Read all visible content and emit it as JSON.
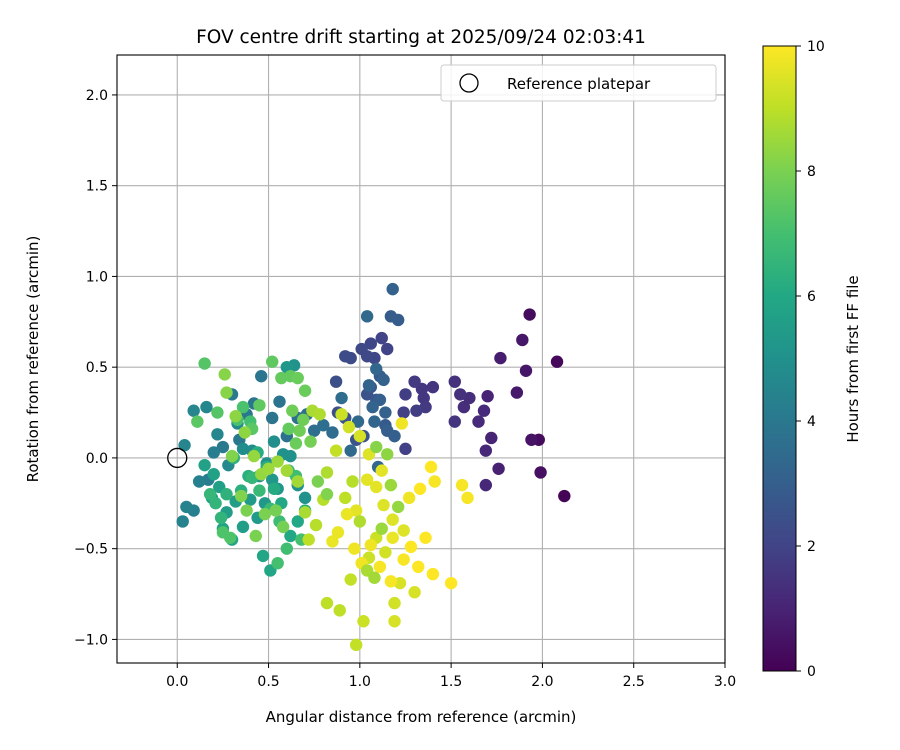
{
  "chart_data": {
    "type": "scatter",
    "title": "FOV centre drift starting at 2025/09/24 02:03:41",
    "xlabel": "Angular distance from reference (arcmin)",
    "ylabel": "Rotation from reference (arcmin)",
    "xlim": [
      -0.33,
      3.0
    ],
    "ylim": [
      -1.13,
      2.22
    ],
    "xticks": [
      0.0,
      0.5,
      1.0,
      1.5,
      2.0,
      2.5,
      3.0
    ],
    "xtick_labels": [
      "0.0",
      "0.5",
      "1.0",
      "1.5",
      "2.0",
      "2.5",
      "3.0"
    ],
    "yticks": [
      -1.0,
      -0.5,
      0.0,
      0.5,
      1.0,
      1.5,
      2.0
    ],
    "ytick_labels": [
      "−1.0",
      "−0.5",
      "0.0",
      "0.5",
      "1.0",
      "1.5",
      "2.0"
    ],
    "grid": true,
    "legend": {
      "placement": "top-right",
      "entries": [
        "Reference platepar"
      ]
    },
    "reference_point": {
      "x": 0.0,
      "y": 0.0
    },
    "colorbar": {
      "label": "Hours from first FF file",
      "colormap": "viridis",
      "range": [
        0,
        10
      ],
      "ticks": [
        0,
        2,
        4,
        6,
        8,
        10
      ],
      "tick_labels": [
        "0",
        "2",
        "4",
        "6",
        "8",
        "10"
      ]
    },
    "points": [
      [
        2.12,
        -0.21,
        0.1
      ],
      [
        2.08,
        0.53,
        0.2
      ],
      [
        1.93,
        0.79,
        0.3
      ],
      [
        1.98,
        0.1,
        0.3
      ],
      [
        1.99,
        -0.08,
        0.4
      ],
      [
        1.94,
        0.1,
        0.5
      ],
      [
        1.91,
        0.48,
        0.6
      ],
      [
        1.89,
        0.65,
        0.6
      ],
      [
        1.86,
        0.36,
        0.7
      ],
      [
        1.77,
        0.55,
        0.8
      ],
      [
        1.76,
        -0.06,
        0.9
      ],
      [
        1.72,
        0.11,
        1.0
      ],
      [
        1.7,
        0.34,
        1.0
      ],
      [
        1.69,
        0.04,
        1.1
      ],
      [
        1.69,
        -0.15,
        1.1
      ],
      [
        1.68,
        0.26,
        1.2
      ],
      [
        1.65,
        0.2,
        1.2
      ],
      [
        1.6,
        0.33,
        1.3
      ],
      [
        1.57,
        0.28,
        1.3
      ],
      [
        1.55,
        0.35,
        1.4
      ],
      [
        1.52,
        0.42,
        1.4
      ],
      [
        1.52,
        0.2,
        1.5
      ],
      [
        1.4,
        0.39,
        1.5
      ],
      [
        1.35,
        0.33,
        1.6
      ],
      [
        1.34,
        0.38,
        1.6
      ],
      [
        1.3,
        0.42,
        1.7
      ],
      [
        1.36,
        0.28,
        1.7
      ],
      [
        1.31,
        0.26,
        1.8
      ],
      [
        1.25,
        0.35,
        1.8
      ],
      [
        1.24,
        0.25,
        1.9
      ],
      [
        1.25,
        0.05,
        1.9
      ],
      [
        1.15,
        0.6,
        2.0
      ],
      [
        1.12,
        0.66,
        2.0
      ],
      [
        1.08,
        0.55,
        2.1
      ],
      [
        1.06,
        0.63,
        2.1
      ],
      [
        1.04,
        0.56,
        2.2
      ],
      [
        1.01,
        0.6,
        2.2
      ],
      [
        0.95,
        0.55,
        2.3
      ],
      [
        0.92,
        0.56,
        2.3
      ],
      [
        0.87,
        0.42,
        2.4
      ],
      [
        0.88,
        0.25,
        2.4
      ],
      [
        0.92,
        0.22,
        2.5
      ],
      [
        0.98,
        0.1,
        2.5
      ],
      [
        1.02,
        0.12,
        2.6
      ],
      [
        1.04,
        0.35,
        2.6
      ],
      [
        1.06,
        0.39,
        2.7
      ],
      [
        1.09,
        0.32,
        2.7
      ],
      [
        1.11,
        0.45,
        2.8
      ],
      [
        1.14,
        0.18,
        2.8
      ],
      [
        1.17,
        0.78,
        2.9
      ],
      [
        1.21,
        0.76,
        2.9
      ],
      [
        1.15,
        0.15,
        3.0
      ],
      [
        1.19,
        0.12,
        3.0
      ],
      [
        1.11,
        0.32,
        3.0
      ],
      [
        1.13,
        0.43,
        3.1
      ],
      [
        1.14,
        0.25,
        3.1
      ],
      [
        1.18,
        0.93,
        3.1
      ],
      [
        1.07,
        0.28,
        3.2
      ],
      [
        1.05,
        0.4,
        3.2
      ],
      [
        1.08,
        0.2,
        3.3
      ],
      [
        1.09,
        0.49,
        3.3
      ],
      [
        1.1,
        -0.05,
        3.3
      ],
      [
        1.04,
        0.78,
        3.4
      ],
      [
        0.99,
        0.2,
        3.4
      ],
      [
        0.95,
        0.04,
        3.4
      ],
      [
        0.9,
        0.33,
        3.5
      ],
      [
        0.85,
        0.14,
        3.5
      ],
      [
        0.8,
        0.18,
        3.6
      ],
      [
        0.75,
        0.15,
        3.6
      ],
      [
        0.71,
        0.24,
        3.6
      ],
      [
        0.66,
        0.22,
        3.7
      ],
      [
        0.6,
        0.12,
        3.7
      ],
      [
        0.56,
        0.31,
        3.8
      ],
      [
        0.52,
        0.22,
        3.8
      ],
      [
        0.46,
        0.45,
        3.9
      ],
      [
        0.42,
        0.3,
        3.9
      ],
      [
        0.38,
        0.24,
        4.0
      ],
      [
        0.34,
        0.1,
        4.0
      ],
      [
        0.3,
        0.35,
        4.1
      ],
      [
        0.25,
        0.06,
        4.1
      ],
      [
        0.2,
        0.03,
        4.2
      ],
      [
        0.17,
        -0.12,
        4.2
      ],
      [
        0.12,
        -0.13,
        4.3
      ],
      [
        0.09,
        -0.29,
        4.3
      ],
      [
        0.05,
        -0.27,
        4.4
      ],
      [
        0.03,
        -0.35,
        4.4
      ],
      [
        0.04,
        0.07,
        4.5
      ],
      [
        0.09,
        0.26,
        4.5
      ],
      [
        0.16,
        0.28,
        4.6
      ],
      [
        0.22,
        0.13,
        4.6
      ],
      [
        0.28,
        -0.04,
        4.7
      ],
      [
        0.33,
        0.19,
        4.7
      ],
      [
        0.36,
        0.05,
        4.8
      ],
      [
        0.41,
        0.04,
        4.8
      ],
      [
        0.45,
        -0.1,
        4.8
      ],
      [
        0.49,
        -0.03,
        4.9
      ],
      [
        0.53,
        0.09,
        4.9
      ],
      [
        0.58,
        0.02,
        5.0
      ],
      [
        0.62,
        0.01,
        5.0
      ],
      [
        0.66,
        -0.15,
        5.0
      ],
      [
        0.7,
        -0.22,
        5.1
      ],
      [
        0.64,
        0.51,
        5.1
      ],
      [
        0.6,
        0.5,
        5.2
      ],
      [
        0.55,
        -0.17,
        5.2
      ],
      [
        0.52,
        -0.12,
        5.3
      ],
      [
        0.48,
        -0.25,
        5.3
      ],
      [
        0.44,
        -0.33,
        5.4
      ],
      [
        0.4,
        -0.23,
        5.4
      ],
      [
        0.36,
        -0.38,
        5.5
      ],
      [
        0.32,
        -0.24,
        5.5
      ],
      [
        0.27,
        -0.3,
        5.5
      ],
      [
        0.23,
        -0.16,
        5.6
      ],
      [
        0.19,
        -0.22,
        5.6
      ],
      [
        0.15,
        -0.04,
        5.7
      ],
      [
        0.2,
        -0.09,
        5.7
      ],
      [
        0.25,
        -0.39,
        5.8
      ],
      [
        0.3,
        -0.45,
        5.8
      ],
      [
        0.47,
        -0.54,
        5.9
      ],
      [
        0.51,
        -0.62,
        5.9
      ],
      [
        0.57,
        -0.25,
        6.0
      ],
      [
        0.62,
        -0.43,
        6.0
      ],
      [
        0.66,
        -0.35,
        6.0
      ],
      [
        0.7,
        -0.29,
        6.1
      ],
      [
        0.53,
        -0.17,
        6.1
      ],
      [
        0.49,
        -0.05,
        6.2
      ],
      [
        0.44,
        0.03,
        6.2
      ],
      [
        0.39,
        -0.1,
        6.3
      ],
      [
        0.35,
        -0.18,
        6.3
      ],
      [
        0.31,
        0.0,
        6.4
      ],
      [
        0.27,
        -0.2,
        6.4
      ],
      [
        0.24,
        -0.33,
        6.5
      ],
      [
        0.21,
        -0.25,
        6.5
      ],
      [
        0.18,
        -0.2,
        6.6
      ],
      [
        0.41,
        -0.11,
        6.6
      ],
      [
        0.45,
        -0.18,
        6.7
      ],
      [
        0.51,
        -0.28,
        6.7
      ],
      [
        0.56,
        -0.35,
        6.8
      ],
      [
        0.61,
        -0.07,
        6.8
      ],
      [
        0.65,
        -0.1,
        6.9
      ],
      [
        0.6,
        -0.5,
        6.9
      ],
      [
        0.55,
        -0.58,
        7.0
      ],
      [
        0.68,
        -0.45,
        7.0
      ],
      [
        0.4,
        0.2,
        7.0
      ],
      [
        0.36,
        0.28,
        7.1
      ],
      [
        0.33,
        0.21,
        7.1
      ],
      [
        0.29,
        -0.44,
        7.2
      ],
      [
        0.25,
        -0.41,
        7.2
      ],
      [
        0.22,
        0.25,
        7.3
      ],
      [
        0.15,
        0.52,
        7.3
      ],
      [
        0.11,
        0.2,
        7.4
      ],
      [
        0.41,
        0.16,
        7.4
      ],
      [
        0.45,
        0.29,
        7.5
      ],
      [
        0.52,
        0.53,
        7.5
      ],
      [
        0.57,
        0.44,
        7.6
      ],
      [
        0.62,
        0.45,
        7.6
      ],
      [
        0.66,
        0.44,
        7.7
      ],
      [
        0.7,
        0.37,
        7.7
      ],
      [
        0.67,
        0.15,
        7.8
      ],
      [
        0.63,
        0.26,
        7.8
      ],
      [
        0.58,
        -0.38,
        7.9
      ],
      [
        0.54,
        -0.29,
        7.9
      ],
      [
        0.48,
        -0.31,
        8.0
      ],
      [
        0.43,
        -0.43,
        8.0
      ],
      [
        0.38,
        -0.29,
        8.0
      ],
      [
        0.35,
        -0.21,
        8.1
      ],
      [
        0.3,
        0.01,
        8.1
      ],
      [
        0.27,
        0.36,
        8.2
      ],
      [
        0.26,
        0.46,
        8.2
      ],
      [
        0.32,
        0.23,
        8.3
      ],
      [
        0.37,
        0.14,
        8.3
      ],
      [
        0.42,
        0.01,
        8.4
      ],
      [
        0.46,
        -0.09,
        8.4
      ],
      [
        0.5,
        -0.06,
        8.5
      ],
      [
        0.55,
        -0.02,
        8.5
      ],
      [
        0.6,
        -0.07,
        8.6
      ],
      [
        0.66,
        -0.13,
        8.6
      ],
      [
        0.7,
        -0.3,
        8.7
      ],
      [
        0.74,
        0.26,
        8.7
      ],
      [
        0.78,
        0.24,
        8.8
      ],
      [
        0.82,
        -0.08,
        8.8
      ],
      [
        0.8,
        -0.23,
        8.9
      ],
      [
        0.76,
        -0.37,
        8.9
      ],
      [
        0.72,
        -0.45,
        9.0
      ],
      [
        0.82,
        -0.8,
        9.0
      ],
      [
        0.89,
        -0.84,
        9.0
      ],
      [
        0.95,
        -0.67,
        9.1
      ],
      [
        0.98,
        -1.03,
        9.1
      ],
      [
        1.02,
        -0.9,
        9.2
      ],
      [
        1.05,
        -0.55,
        9.2
      ],
      [
        1.09,
        -0.44,
        9.2
      ],
      [
        1.14,
        -0.52,
        9.3
      ],
      [
        1.19,
        -0.8,
        9.3
      ],
      [
        1.19,
        -0.9,
        9.4
      ],
      [
        1.22,
        -0.69,
        9.4
      ],
      [
        1.3,
        -0.74,
        9.4
      ],
      [
        1.24,
        -0.4,
        9.5
      ],
      [
        1.18,
        -0.34,
        9.5
      ],
      [
        1.13,
        -0.26,
        9.5
      ],
      [
        1.09,
        -0.16,
        9.6
      ],
      [
        1.04,
        -0.12,
        9.6
      ],
      [
        0.98,
        -0.29,
        9.6
      ],
      [
        0.93,
        -0.31,
        9.7
      ],
      [
        0.88,
        -0.41,
        9.7
      ],
      [
        0.85,
        -0.46,
        9.7
      ],
      [
        0.97,
        -0.5,
        9.8
      ],
      [
        1.01,
        -0.58,
        9.8
      ],
      [
        1.06,
        -0.48,
        9.8
      ],
      [
        1.11,
        -0.6,
        9.9
      ],
      [
        1.17,
        -0.68,
        9.9
      ],
      [
        1.24,
        -0.56,
        9.9
      ],
      [
        1.28,
        -0.49,
        10.0
      ],
      [
        1.32,
        -0.6,
        10.0
      ],
      [
        1.36,
        -0.44,
        10.0
      ],
      [
        1.4,
        -0.64,
        10.0
      ],
      [
        1.5,
        -0.69,
        10.0
      ],
      [
        1.39,
        -0.05,
        10.0
      ],
      [
        1.33,
        -0.17,
        10.0
      ],
      [
        1.41,
        -0.13,
        9.9
      ],
      [
        1.56,
        -0.15,
        9.9
      ],
      [
        1.59,
        -0.22,
        9.9
      ],
      [
        1.23,
        0.19,
        9.8
      ],
      [
        1.27,
        -0.22,
        9.8
      ],
      [
        1.18,
        -0.44,
        9.7
      ],
      [
        1.12,
        -0.07,
        9.6
      ],
      [
        1.05,
        0.02,
        9.5
      ],
      [
        1.0,
        0.12,
        9.4
      ],
      [
        0.94,
        0.17,
        9.3
      ],
      [
        0.9,
        0.24,
        9.2
      ],
      [
        0.87,
        0.04,
        9.1
      ],
      [
        0.92,
        -0.22,
        9.0
      ],
      [
        0.96,
        -0.13,
        8.9
      ],
      [
        1.0,
        -0.35,
        8.8
      ],
      [
        1.04,
        -0.62,
        8.7
      ],
      [
        1.08,
        -0.66,
        8.6
      ],
      [
        1.12,
        -0.39,
        8.5
      ],
      [
        1.17,
        -0.15,
        8.5
      ],
      [
        1.21,
        -0.27,
        8.4
      ],
      [
        1.15,
        0.02,
        8.3
      ],
      [
        1.09,
        0.06,
        8.2
      ],
      [
        0.82,
        -0.2,
        8.1
      ],
      [
        0.77,
        -0.13,
        8.0
      ],
      [
        0.73,
        0.09,
        7.9
      ],
      [
        0.69,
        0.21,
        7.8
      ],
      [
        0.65,
        0.08,
        7.7
      ],
      [
        0.61,
        0.16,
        7.6
      ]
    ]
  }
}
